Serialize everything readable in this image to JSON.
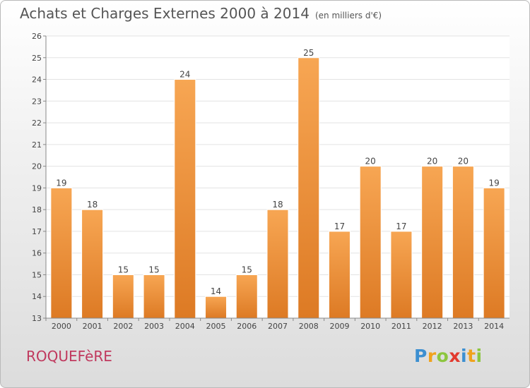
{
  "chart_data": {
    "type": "bar",
    "title": "Achats et Charges Externes 2000 à 2014",
    "subtitle": "(en milliers d'€)",
    "categories": [
      "2000",
      "2001",
      "2002",
      "2003",
      "2004",
      "2005",
      "2006",
      "2007",
      "2008",
      "2009",
      "2010",
      "2011",
      "2012",
      "2013",
      "2014"
    ],
    "values": [
      19,
      18,
      15,
      15,
      24,
      14,
      15,
      18,
      25,
      17,
      20,
      17,
      20,
      20,
      19
    ],
    "ylim": [
      13,
      26
    ],
    "yticks": [
      "13",
      "14",
      "15",
      "16",
      "17",
      "18",
      "19",
      "20",
      "21",
      "22",
      "23",
      "24",
      "25",
      "26"
    ],
    "xlabel": "",
    "ylabel": "",
    "grid": true,
    "bar_color_top": "#f7a653",
    "bar_color_bottom": "#dd7a24"
  },
  "footer": {
    "commune": "ROQUEFèRE",
    "logo_letters": [
      {
        "ch": "P",
        "color": "#3c8fd1"
      },
      {
        "ch": "r",
        "color": "#f0a21c"
      },
      {
        "ch": "o",
        "color": "#8cc63f"
      },
      {
        "ch": "x",
        "color": "#e23a2e"
      },
      {
        "ch": "i",
        "color": "#3c8fd1"
      },
      {
        "ch": "t",
        "color": "#f0a21c"
      },
      {
        "ch": "i",
        "color": "#8cc63f"
      }
    ]
  }
}
